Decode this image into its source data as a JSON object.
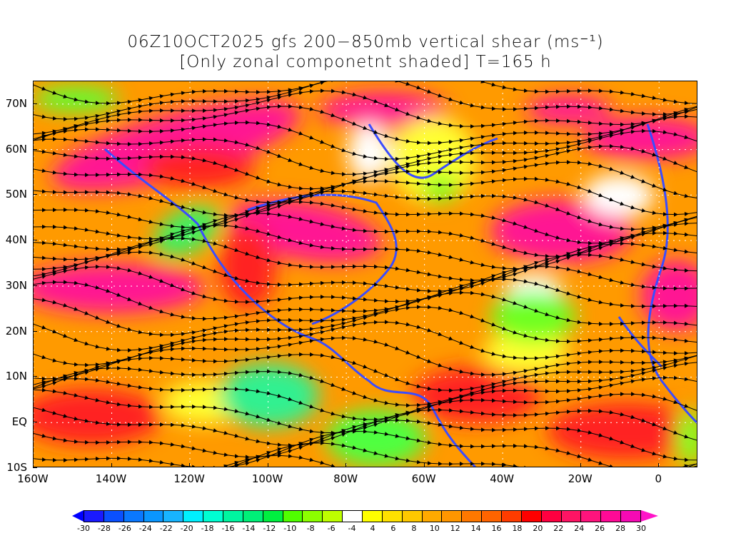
{
  "title": {
    "line1": "06Z10OCT2025 gfs 200−850mb vertical shear (ms⁻¹)",
    "line2": "[Only zonal componetnt shaded] T=165 h"
  },
  "map": {
    "lon_range": [
      -160,
      10
    ],
    "lat_range": [
      -10,
      75
    ],
    "lon_ticks": [
      {
        "value": -160,
        "label": "160W"
      },
      {
        "value": -140,
        "label": "140W"
      },
      {
        "value": -120,
        "label": "120W"
      },
      {
        "value": -100,
        "label": "100W"
      },
      {
        "value": -80,
        "label": "80W"
      },
      {
        "value": -60,
        "label": "60W"
      },
      {
        "value": -40,
        "label": "40W"
      },
      {
        "value": -20,
        "label": "20W"
      },
      {
        "value": 0,
        "label": "0"
      }
    ],
    "lat_ticks": [
      {
        "value": 70,
        "label": "70N"
      },
      {
        "value": 60,
        "label": "60N"
      },
      {
        "value": 50,
        "label": "50N"
      },
      {
        "value": 40,
        "label": "40N"
      },
      {
        "value": 30,
        "label": "30N"
      },
      {
        "value": 20,
        "label": "20N"
      },
      {
        "value": 10,
        "label": "10N"
      },
      {
        "value": 0,
        "label": "EQ"
      },
      {
        "value": -10,
        "label": "10S"
      }
    ]
  },
  "colorbar": {
    "labels": [
      "-30",
      "-28",
      "-26",
      "-24",
      "-22",
      "-20",
      "-18",
      "-16",
      "-14",
      "-12",
      "-10",
      "-8",
      "-6",
      "-4",
      "4",
      "6",
      "8",
      "10",
      "12",
      "14",
      "16",
      "18",
      "20",
      "22",
      "24",
      "26",
      "28",
      "30"
    ],
    "colors": [
      "#1a1aff",
      "#0a50ff",
      "#0a78ff",
      "#0a96ff",
      "#18b4ff",
      "#00f0ff",
      "#00ffd2",
      "#00f5a0",
      "#00f078",
      "#00f040",
      "#50ff00",
      "#8cff00",
      "#beff00",
      "#ffffff",
      "#ffff00",
      "#ffe100",
      "#ffc800",
      "#ffaa00",
      "#ff9600",
      "#ff7800",
      "#ff6400",
      "#ff3c00",
      "#ff0000",
      "#ff0040",
      "#ff1464",
      "#ff147d",
      "#ff0a96",
      "#f50ab4"
    ],
    "low_arrow_color": "#0000ff",
    "high_arrow_color": "#ff14c8"
  }
}
